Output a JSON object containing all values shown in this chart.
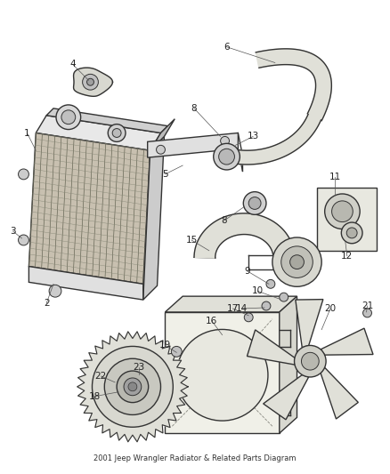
{
  "title": "2001 Jeep Wrangler Radiator & Related Parts Diagram",
  "background_color": "#ffffff",
  "line_color": "#333333",
  "label_color": "#222222",
  "fig_width": 4.38,
  "fig_height": 5.33,
  "dpi": 100
}
